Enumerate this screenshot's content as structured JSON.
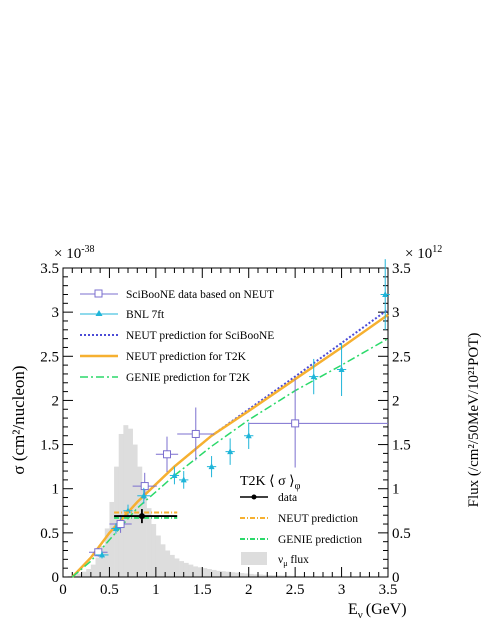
{
  "chart_data": {
    "type": "line",
    "xlabel": "E",
    "xlabel_sub": "ν",
    "xlabel_unit": "(GeV)",
    "ylabel": "σ (cm²/nucleon)",
    "y_multiplier": "× 10",
    "y_multiplier_exp": "-38",
    "y2label": "Flux (/cm²/50MeV/10²¹POT)",
    "y2_multiplier": "× 10",
    "y2_multiplier_exp": "12",
    "xlim": [
      0,
      3.5
    ],
    "ylim": [
      0,
      3.5
    ],
    "y2lim": [
      0,
      3.5
    ],
    "x_ticks": [
      "0",
      "0.5",
      "1",
      "1.5",
      "2",
      "2.5",
      "3",
      "3.5"
    ],
    "y_ticks": [
      "0",
      "0.5",
      "1",
      "1.5",
      "2",
      "2.5",
      "3",
      "3.5"
    ],
    "y2_ticks": [
      "0",
      "0.5",
      "1",
      "1.5",
      "2",
      "2.5",
      "3",
      "3.5"
    ],
    "legend_top": [
      {
        "key": "sciboone",
        "label": "SciBooNE data based on NEUT",
        "color": "#7b6fcf"
      },
      {
        "key": "bnl",
        "label": "BNL 7ft",
        "color": "#1fb5d9"
      },
      {
        "key": "neut_sci",
        "label": "NEUT prediction for SciBooNE",
        "color": "#4b4bd6"
      },
      {
        "key": "neut_t2k",
        "label": "NEUT prediction for T2K",
        "color": "#f6b030"
      },
      {
        "key": "genie",
        "label": "GENIE prediction for T2K",
        "color": "#2bd96a"
      }
    ],
    "legend_inset_title": "T2K ⟨ σ ⟩",
    "legend_inset_title_sub": "φ",
    "legend_inset": [
      {
        "key": "data",
        "label": "data",
        "color": "#000000"
      },
      {
        "key": "neut_pred",
        "label": "NEUT prediction",
        "color": "#f6b030"
      },
      {
        "key": "genie_pred",
        "label": "GENIE prediction",
        "color": "#2bd96a"
      },
      {
        "key": "flux",
        "label": "ν",
        "label_sub": "μ",
        "label_rest": " flux",
        "color": "#dddddd"
      }
    ],
    "series": [
      {
        "key": "neut_sci",
        "style": "dotted",
        "color": "#4b4bd6",
        "x": [
          0.1,
          0.3,
          0.5,
          0.8,
          1.2,
          1.6,
          2.0,
          2.5,
          3.0,
          3.5
        ],
        "y": [
          0.0,
          0.22,
          0.5,
          0.85,
          1.25,
          1.6,
          1.9,
          2.27,
          2.65,
          3.03
        ]
      },
      {
        "key": "neut_t2k",
        "style": "solid",
        "color": "#f6b030",
        "x": [
          0.1,
          0.3,
          0.5,
          0.8,
          1.2,
          1.6,
          2.0,
          2.5,
          3.0,
          3.5
        ],
        "y": [
          0.0,
          0.22,
          0.5,
          0.85,
          1.25,
          1.6,
          1.88,
          2.24,
          2.6,
          2.97
        ]
      },
      {
        "key": "genie",
        "style": "dashdot",
        "color": "#2bd96a",
        "x": [
          0.1,
          0.3,
          0.5,
          0.8,
          1.2,
          1.6,
          2.0,
          2.5,
          3.0,
          3.5
        ],
        "y": [
          0.0,
          0.18,
          0.42,
          0.78,
          1.15,
          1.48,
          1.78,
          2.11,
          2.4,
          2.7
        ]
      }
    ],
    "sciboone_points": [
      {
        "x": 0.38,
        "y": 0.28,
        "xerr": [
          0.1,
          0.1
        ],
        "yerr": [
          0.05,
          0.05
        ]
      },
      {
        "x": 0.62,
        "y": 0.6,
        "xerr": [
          0.12,
          0.12
        ],
        "yerr": [
          0.1,
          0.1
        ]
      },
      {
        "x": 0.88,
        "y": 1.03,
        "xerr": [
          0.13,
          0.13
        ],
        "yerr": [
          0.15,
          0.15
        ]
      },
      {
        "x": 1.12,
        "y": 1.39,
        "xerr": [
          0.12,
          0.12
        ],
        "yerr": [
          0.2,
          0.2
        ]
      },
      {
        "x": 1.43,
        "y": 1.62,
        "xerr": [
          0.2,
          0.2
        ],
        "yerr": [
          0.3,
          0.3
        ]
      },
      {
        "x": 2.5,
        "y": 1.74,
        "xerr": [
          0.5,
          1.0
        ],
        "yerr": [
          0.5,
          0.5
        ]
      }
    ],
    "bnl_points": [
      {
        "x": 0.42,
        "y": 0.25,
        "xerr": [
          0.07,
          0.07
        ],
        "yerr": [
          0.04,
          0.04
        ]
      },
      {
        "x": 0.57,
        "y": 0.55,
        "xerr": [
          0.05,
          0.05
        ],
        "yerr": [
          0.06,
          0.06
        ]
      },
      {
        "x": 0.7,
        "y": 0.75,
        "xerr": [
          0.05,
          0.05
        ],
        "yerr": [
          0.07,
          0.07
        ]
      },
      {
        "x": 0.87,
        "y": 0.92,
        "xerr": [
          0.07,
          0.07
        ],
        "yerr": [
          0.09,
          0.09
        ]
      },
      {
        "x": 1.2,
        "y": 1.15,
        "xerr": [
          0.05,
          0.05
        ],
        "yerr": [
          0.1,
          0.1
        ]
      },
      {
        "x": 1.3,
        "y": 1.1,
        "xerr": [
          0.05,
          0.05
        ],
        "yerr": [
          0.1,
          0.1
        ]
      },
      {
        "x": 1.6,
        "y": 1.25,
        "xerr": [
          0.05,
          0.05
        ],
        "yerr": [
          0.12,
          0.12
        ]
      },
      {
        "x": 1.8,
        "y": 1.42,
        "xerr": [
          0.05,
          0.05
        ],
        "yerr": [
          0.15,
          0.15
        ]
      },
      {
        "x": 2.0,
        "y": 1.6,
        "xerr": [
          0.05,
          0.05
        ],
        "yerr": [
          0.15,
          0.15
        ]
      },
      {
        "x": 2.7,
        "y": 2.27,
        "xerr": [
          0.05,
          0.05
        ],
        "yerr": [
          0.2,
          0.2
        ]
      },
      {
        "x": 3.0,
        "y": 2.35,
        "xerr": [
          0.05,
          0.05
        ],
        "yerr": [
          0.3,
          0.3
        ]
      },
      {
        "x": 3.47,
        "y": 3.2,
        "xerr": [
          0.05,
          0.05
        ],
        "yerr": [
          0.4,
          0.4
        ]
      }
    ],
    "t2k_point": {
      "x": 0.85,
      "y": 0.69,
      "xerr": [
        0.3,
        0.38
      ],
      "yerr": [
        0.08,
        0.08
      ]
    },
    "t2k_neut_band": {
      "x0": 0.55,
      "x1": 1.23,
      "y": 0.73
    },
    "t2k_genie_band": {
      "x0": 0.55,
      "x1": 1.23,
      "y": 0.67
    },
    "flux_bin_width": 0.05,
    "flux_start": 0.05,
    "flux": [
      0.01,
      0.02,
      0.04,
      0.06,
      0.09,
      0.14,
      0.22,
      0.35,
      0.55,
      0.85,
      1.25,
      1.62,
      1.72,
      1.68,
      1.5,
      1.25,
      1.0,
      0.78,
      0.6,
      0.47,
      0.37,
      0.3,
      0.25,
      0.21,
      0.18,
      0.16,
      0.14,
      0.12,
      0.11,
      0.1,
      0.09,
      0.08,
      0.07,
      0.065,
      0.06,
      0.055,
      0.05,
      0.045,
      0.04,
      0.035,
      0.03,
      0.028,
      0.025,
      0.022,
      0.02,
      0.018,
      0.016,
      0.014,
      0.012,
      0.01,
      0.009,
      0.008,
      0.007,
      0.006,
      0.005,
      0.004,
      0.003,
      0.002
    ]
  }
}
